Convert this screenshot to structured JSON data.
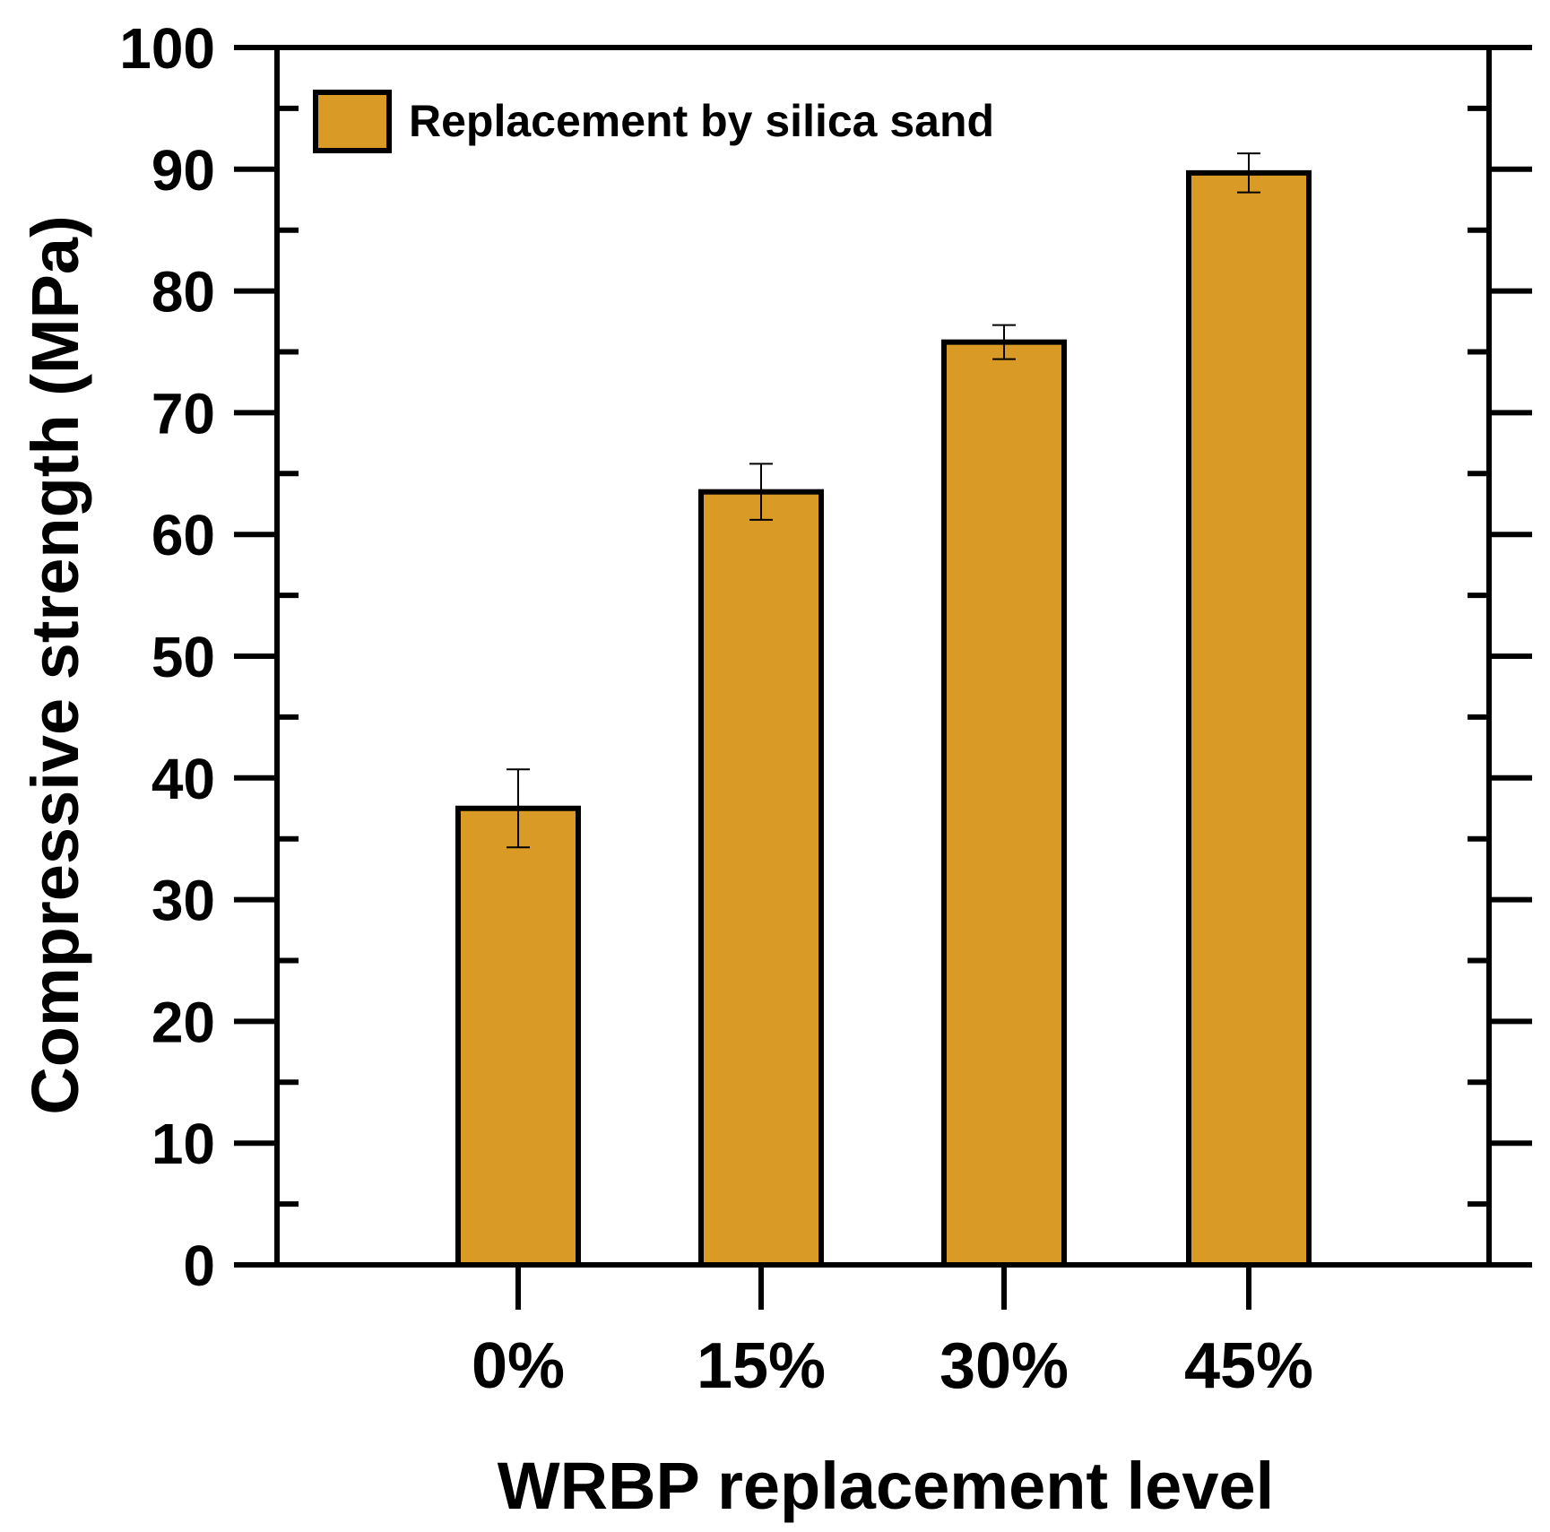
{
  "chart_data": {
    "type": "bar",
    "categories": [
      "0%",
      "15%",
      "30%",
      "45%"
    ],
    "series": [
      {
        "name": "Replacement by silica sand",
        "values": [
          37.5,
          63.5,
          75.8,
          89.7
        ],
        "error": [
          3.2,
          2.3,
          1.4,
          1.6
        ]
      }
    ],
    "xlabel": "WRBP replacement level",
    "ylabel": "Compressive strength (MPa)",
    "ylim": [
      0,
      100
    ],
    "yticks": [
      0,
      10,
      20,
      30,
      40,
      50,
      60,
      70,
      80,
      90,
      100
    ],
    "ytick_labels": [
      "0",
      "10",
      "20",
      "30",
      "40",
      "50",
      "60",
      "70",
      "80",
      "90",
      "100"
    ],
    "grid": false,
    "legend_position": "top-left",
    "colors": {
      "bar_fill": "#DA9A26",
      "outline": "#000000"
    }
  }
}
